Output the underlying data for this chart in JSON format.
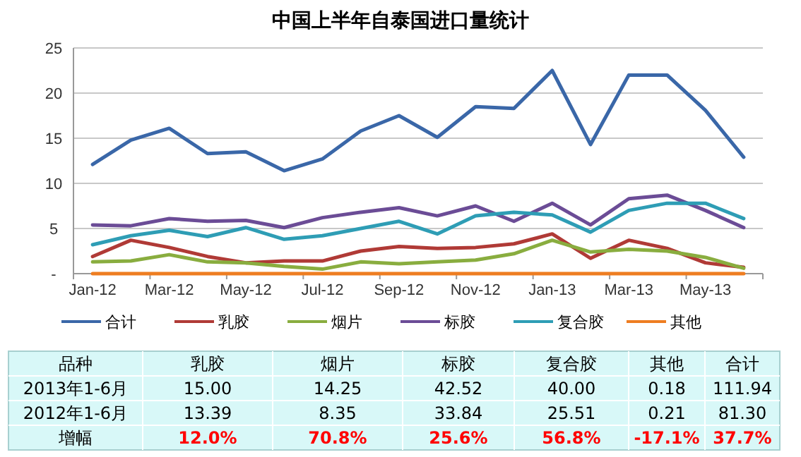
{
  "chart_data": {
    "type": "line",
    "title": "中国上半年自泰国进口量统计",
    "categories": [
      "Jan-12",
      null,
      "Mar-12",
      null,
      "May-12",
      null,
      "Jul-12",
      null,
      "Sep-12",
      null,
      "Nov-12",
      null,
      "Jan-13",
      null,
      "Mar-13",
      null,
      "May-13",
      null
    ],
    "series": [
      {
        "name": "合计",
        "color": "#3a67a8",
        "values": [
          12.1,
          14.8,
          16.1,
          13.3,
          13.5,
          11.4,
          12.7,
          15.8,
          17.5,
          15.1,
          18.5,
          18.3,
          22.5,
          14.3,
          22.0,
          22.0,
          18.1,
          12.9
        ]
      },
      {
        "name": "乳胶",
        "color": "#b03a36",
        "values": [
          1.9,
          3.7,
          2.9,
          1.9,
          1.2,
          1.4,
          1.4,
          2.5,
          3.0,
          2.8,
          2.9,
          3.3,
          4.4,
          1.7,
          3.7,
          2.8,
          1.2,
          0.7
        ]
      },
      {
        "name": "烟片",
        "color": "#89ad3f",
        "values": [
          1.3,
          1.4,
          2.1,
          1.3,
          1.2,
          0.8,
          0.5,
          1.3,
          1.1,
          1.3,
          1.5,
          2.2,
          3.7,
          2.4,
          2.7,
          2.5,
          1.8,
          0.6
        ]
      },
      {
        "name": "标胶",
        "color": "#6b4c96",
        "values": [
          5.4,
          5.3,
          6.1,
          5.8,
          5.9,
          5.1,
          6.2,
          6.8,
          7.3,
          6.4,
          7.5,
          5.8,
          7.8,
          5.4,
          8.3,
          8.7,
          7.0,
          5.1
        ]
      },
      {
        "name": "复合胶",
        "color": "#2e9db5",
        "values": [
          3.2,
          4.2,
          4.8,
          4.1,
          5.1,
          3.8,
          4.2,
          5.0,
          5.8,
          4.4,
          6.4,
          6.8,
          6.5,
          4.6,
          7.0,
          7.8,
          7.8,
          6.1
        ]
      },
      {
        "name": "其他",
        "color": "#ee7d21",
        "values": [
          0,
          0,
          0,
          0,
          0,
          0,
          0,
          0,
          0,
          0,
          0,
          0,
          0,
          0,
          0,
          0,
          0,
          0
        ]
      }
    ],
    "ylim": [
      0,
      25
    ],
    "yticks": [
      {
        "value": 0,
        "label": "-"
      },
      5,
      10,
      15,
      20,
      25
    ],
    "grid": "y",
    "legend": "bottom",
    "marker": "none",
    "line_style": "solid",
    "annotations": [
      "品种",
      "乳胶",
      "烟片",
      "标胶",
      "复合胶",
      "其他",
      "合计",
      "2013年1-6月",
      "15.00",
      "14.25",
      "42.52",
      "40.00",
      "0.18",
      "111.94",
      "2012年1-6月",
      "13.39",
      "8.35",
      "33.84",
      "25.51",
      "0.21",
      "81.30",
      "增幅",
      "12.0%",
      "70.8%",
      "25.6%",
      "56.8%",
      "-17.1%",
      "37.7%"
    ]
  }
}
